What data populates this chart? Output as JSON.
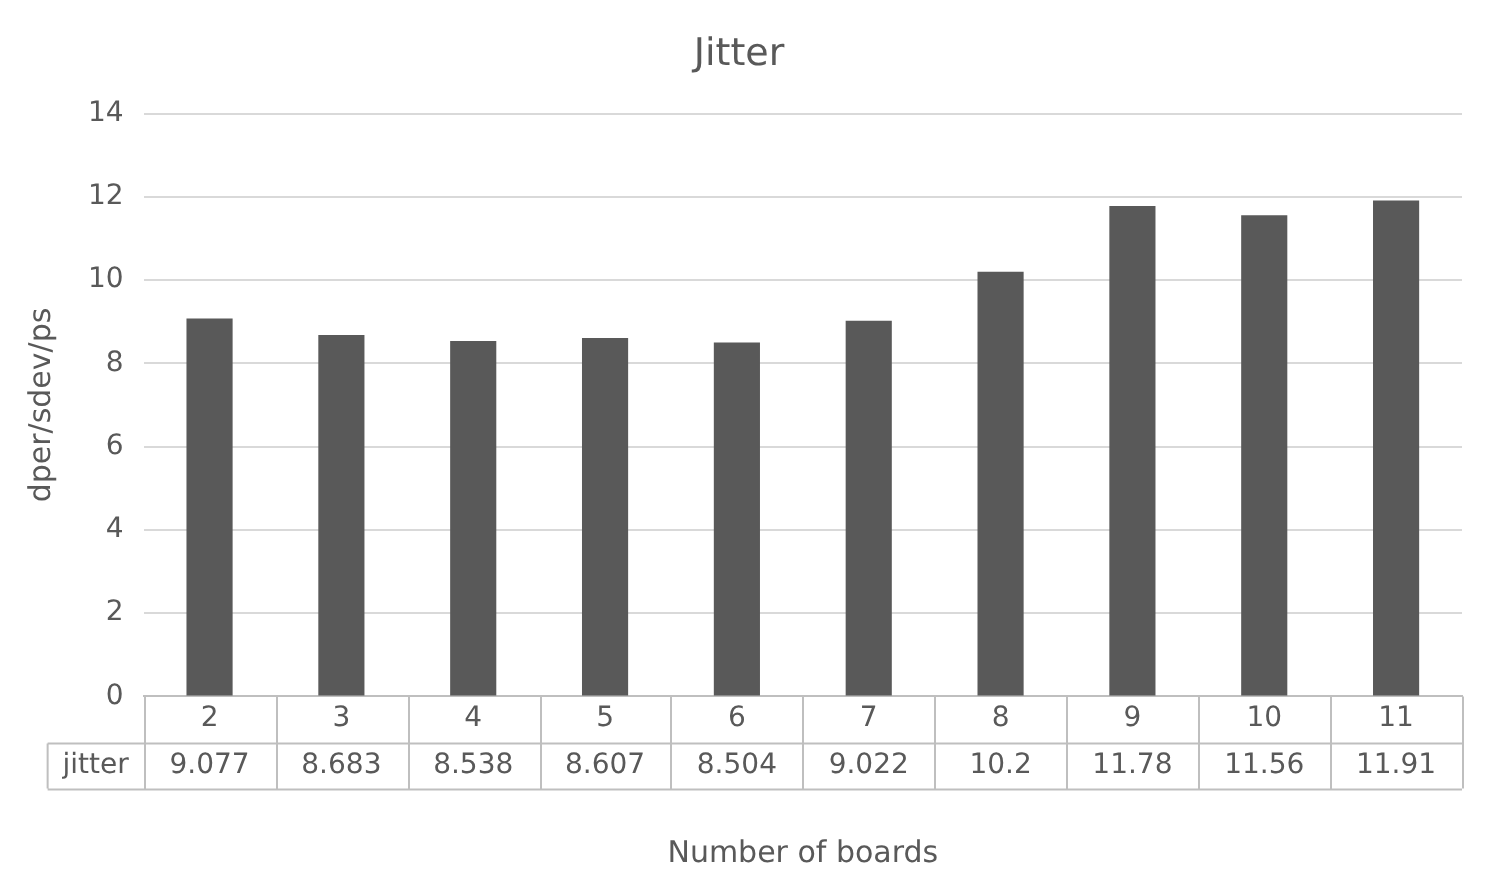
{
  "chart_data": {
    "type": "bar",
    "title": "Jitter",
    "xlabel": "Number of boards",
    "ylabel": "dper/sdev/ps",
    "categories": [
      "2",
      "3",
      "4",
      "5",
      "6",
      "7",
      "8",
      "9",
      "10",
      "11"
    ],
    "series": [
      {
        "name": "jitter",
        "color": "#595959",
        "values": [
          9.077,
          8.683,
          8.538,
          8.607,
          8.504,
          9.022,
          10.2,
          11.78,
          11.56,
          11.91
        ]
      }
    ],
    "ylim": [
      0,
      14
    ],
    "yticks": [
      0,
      2,
      4,
      6,
      8,
      10,
      12,
      14
    ],
    "grid": "y",
    "data_labels": true,
    "legend": false
  }
}
